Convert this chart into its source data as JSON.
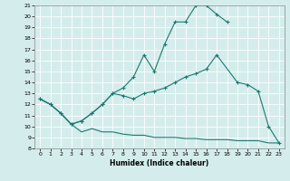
{
  "xlabel": "Humidex (Indice chaleur)",
  "bg_color": "#d4ecec",
  "line_color": "#1a7a6e",
  "grid_color": "#ffffff",
  "xlim": [
    -0.5,
    23.5
  ],
  "ylim": [
    8,
    21
  ],
  "line1_x": [
    0,
    1,
    2,
    3,
    4,
    5,
    6,
    7,
    8,
    9,
    10,
    11,
    12,
    13,
    14,
    15,
    16,
    17,
    18
  ],
  "line1_y": [
    12.5,
    12.0,
    11.2,
    10.2,
    10.5,
    11.2,
    12.0,
    13.0,
    13.5,
    14.5,
    16.5,
    15.0,
    17.5,
    19.5,
    19.5,
    21.0,
    21.0,
    20.2,
    19.5
  ],
  "line2_x": [
    0,
    1,
    2,
    3,
    4,
    5,
    6,
    7,
    8,
    9,
    10,
    11,
    12,
    13,
    14,
    15,
    16,
    17,
    19,
    20,
    21,
    22,
    23
  ],
  "line2_y": [
    12.5,
    12.0,
    11.2,
    10.2,
    10.5,
    11.2,
    12.0,
    13.0,
    12.8,
    12.5,
    13.0,
    13.2,
    13.5,
    14.0,
    14.5,
    14.8,
    15.2,
    16.5,
    14.0,
    13.8,
    13.2,
    10.0,
    8.5
  ],
  "line3_x": [
    0,
    1,
    2,
    3,
    4,
    5,
    6,
    7,
    8,
    9,
    10,
    11,
    12,
    13,
    14,
    15,
    16,
    17,
    18,
    19,
    20,
    21,
    22,
    23
  ],
  "line3_y": [
    12.5,
    12.0,
    11.2,
    10.2,
    9.5,
    9.8,
    9.5,
    9.5,
    9.3,
    9.2,
    9.2,
    9.0,
    9.0,
    9.0,
    8.9,
    8.9,
    8.8,
    8.8,
    8.8,
    8.7,
    8.7,
    8.7,
    8.5,
    8.5
  ],
  "yticks": [
    8,
    9,
    10,
    11,
    12,
    13,
    14,
    15,
    16,
    17,
    18,
    19,
    20,
    21
  ],
  "xticks": [
    0,
    1,
    2,
    3,
    4,
    5,
    6,
    7,
    8,
    9,
    10,
    11,
    12,
    13,
    14,
    15,
    16,
    17,
    18,
    19,
    20,
    21,
    22,
    23
  ]
}
